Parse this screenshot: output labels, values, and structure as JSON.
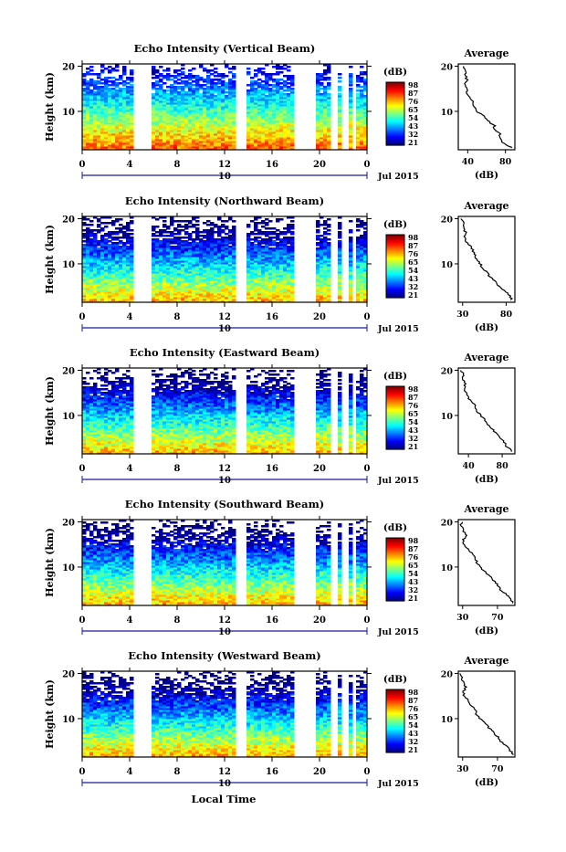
{
  "colorbar_unit": "(dB)",
  "common": {
    "x_ticks": [
      "0",
      "4",
      "8",
      "12",
      "16",
      "20",
      "0"
    ],
    "date_tick": "10",
    "date_label": "Jul 2015",
    "ylabel": "Height (km)",
    "y_ticks": [
      "20",
      "10"
    ],
    "xlabel": "Local Time"
  },
  "chart_data": [
    {
      "type": "heatmap",
      "title": "Echo Intensity (Vertical Beam)",
      "ylabel": "Height (km)",
      "x": {
        "unit": "local time (h)",
        "range": [
          0,
          24
        ],
        "ticks": [
          0,
          4,
          8,
          12,
          16,
          20,
          24
        ]
      },
      "y": {
        "unit": "km",
        "range": [
          1.5,
          20.5
        ],
        "ticks": [
          10,
          20
        ]
      },
      "gaps_hours": [
        [
          4.3,
          5.9
        ],
        [
          12.9,
          14.0
        ],
        [
          17.8,
          19.7
        ],
        [
          21.0,
          21.4
        ],
        [
          22.0,
          22.5
        ],
        [
          22.8,
          23.2
        ]
      ],
      "colorbar_ticks": [
        "98",
        "87",
        "76",
        "65",
        "54",
        "43",
        "32",
        "21"
      ],
      "colorbar_range": [
        21,
        98
      ],
      "profile": {
        "title": "Average",
        "xlabel": "(dB)",
        "xlim": [
          30,
          90
        ],
        "xticks": [
          "40",
          "80"
        ],
        "xtick_values": [
          40,
          80
        ],
        "heights": [
          2,
          3,
          4,
          5,
          6,
          7,
          8,
          9,
          10,
          11,
          12,
          13,
          14,
          15,
          16,
          17,
          18,
          19,
          20
        ],
        "values": [
          86,
          78,
          73,
          74,
          69,
          68,
          60,
          56,
          50,
          46,
          45,
          43,
          40,
          39,
          38,
          39,
          37,
          38,
          36
        ]
      }
    },
    {
      "type": "heatmap",
      "title": "Echo Intensity (Northward Beam)",
      "ylabel": "Height (km)",
      "x": {
        "unit": "local time (h)",
        "range": [
          0,
          24
        ],
        "ticks": [
          0,
          4,
          8,
          12,
          16,
          20,
          24
        ]
      },
      "y": {
        "unit": "km",
        "range": [
          1.5,
          20.5
        ],
        "ticks": [
          10,
          20
        ]
      },
      "gaps_hours": [
        [
          4.3,
          5.9
        ],
        [
          12.9,
          14.0
        ],
        [
          17.8,
          19.7
        ],
        [
          21.0,
          21.4
        ],
        [
          22.0,
          22.5
        ],
        [
          22.8,
          23.2
        ]
      ],
      "colorbar_ticks": [
        "98",
        "87",
        "76",
        "65",
        "54",
        "43",
        "32",
        "21"
      ],
      "colorbar_range": [
        21,
        98
      ],
      "profile": {
        "title": "Average",
        "xlabel": "(dB)",
        "xlim": [
          25,
          90
        ],
        "xticks": [
          "30",
          "80"
        ],
        "xtick_values": [
          30,
          80
        ],
        "heights": [
          2,
          3,
          4,
          5,
          6,
          7,
          8,
          9,
          10,
          11,
          12,
          13,
          14,
          15,
          16,
          17,
          18,
          19,
          20
        ],
        "values": [
          86,
          84,
          78,
          72,
          68,
          62,
          58,
          54,
          50,
          46,
          44,
          42,
          38,
          34,
          31,
          34,
          30,
          31,
          29
        ]
      }
    },
    {
      "type": "heatmap",
      "title": "Echo Intensity (Eastward Beam)",
      "ylabel": "Height (km)",
      "x": {
        "unit": "local time (h)",
        "range": [
          0,
          24
        ],
        "ticks": [
          0,
          4,
          8,
          12,
          16,
          20,
          24
        ]
      },
      "y": {
        "unit": "km",
        "range": [
          1.5,
          20.5
        ],
        "ticks": [
          10,
          20
        ]
      },
      "gaps_hours": [
        [
          4.3,
          5.9
        ],
        [
          12.9,
          14.0
        ],
        [
          17.8,
          19.7
        ],
        [
          21.0,
          21.4
        ],
        [
          22.0,
          22.5
        ],
        [
          22.8,
          23.2
        ]
      ],
      "colorbar_ticks": [
        "98",
        "87",
        "76",
        "65",
        "54",
        "43",
        "32",
        "21"
      ],
      "colorbar_range": [
        21,
        98
      ],
      "profile": {
        "title": "Average",
        "xlabel": "(dB)",
        "xlim": [
          28,
          95
        ],
        "xticks": [
          "40",
          "80"
        ],
        "xtick_values": [
          40,
          80
        ],
        "heights": [
          2,
          3,
          4,
          5,
          6,
          7,
          8,
          9,
          10,
          11,
          12,
          13,
          14,
          15,
          16,
          17,
          18,
          19,
          20
        ],
        "values": [
          92,
          86,
          82,
          78,
          72,
          68,
          63,
          60,
          54,
          50,
          48,
          44,
          40,
          37,
          35,
          37,
          33,
          34,
          32
        ]
      }
    },
    {
      "type": "heatmap",
      "title": "Echo Intensity (Southward Beam)",
      "ylabel": "Height (km)",
      "x": {
        "unit": "local time (h)",
        "range": [
          0,
          24
        ],
        "ticks": [
          0,
          4,
          8,
          12,
          16,
          20,
          24
        ]
      },
      "y": {
        "unit": "km",
        "range": [
          1.5,
          20.5
        ],
        "ticks": [
          10,
          20
        ]
      },
      "gaps_hours": [
        [
          4.3,
          5.9
        ],
        [
          12.9,
          14.0
        ],
        [
          17.8,
          19.7
        ],
        [
          21.0,
          21.4
        ],
        [
          22.0,
          22.5
        ],
        [
          22.8,
          23.2
        ]
      ],
      "colorbar_ticks": [
        "98",
        "87",
        "76",
        "65",
        "54",
        "43",
        "32",
        "21"
      ],
      "colorbar_range": [
        21,
        98
      ],
      "profile": {
        "title": "Average",
        "xlabel": "(dB)",
        "xlim": [
          25,
          90
        ],
        "xticks": [
          "30",
          "70"
        ],
        "xtick_values": [
          30,
          70
        ],
        "heights": [
          2,
          3,
          4,
          5,
          6,
          7,
          8,
          9,
          10,
          11,
          12,
          13,
          14,
          15,
          16,
          17,
          18,
          19,
          20
        ],
        "values": [
          88,
          84,
          80,
          74,
          70,
          66,
          60,
          56,
          50,
          46,
          44,
          40,
          36,
          32,
          31,
          34,
          30,
          29,
          28
        ]
      }
    },
    {
      "type": "heatmap",
      "title": "Echo Intensity (Westward Beam)",
      "ylabel": "Height (km)",
      "x": {
        "unit": "local time (h)",
        "range": [
          0,
          24
        ],
        "ticks": [
          0,
          4,
          8,
          12,
          16,
          20,
          24
        ]
      },
      "y": {
        "unit": "km",
        "range": [
          1.5,
          20.5
        ],
        "ticks": [
          10,
          20
        ]
      },
      "gaps_hours": [
        [
          4.3,
          5.9
        ],
        [
          12.9,
          14.0
        ],
        [
          17.8,
          19.7
        ],
        [
          21.0,
          21.4
        ],
        [
          22.0,
          22.5
        ],
        [
          22.8,
          23.2
        ]
      ],
      "colorbar_ticks": [
        "98",
        "87",
        "76",
        "65",
        "54",
        "43",
        "32",
        "21"
      ],
      "colorbar_range": [
        21,
        98
      ],
      "profile": {
        "title": "Average",
        "xlabel": "(dB)",
        "xlim": [
          25,
          90
        ],
        "xticks": [
          "30",
          "70"
        ],
        "xtick_values": [
          30,
          70
        ],
        "heights": [
          2,
          3,
          4,
          5,
          6,
          7,
          8,
          9,
          10,
          11,
          12,
          13,
          14,
          15,
          16,
          17,
          18,
          19,
          20
        ],
        "values": [
          88,
          84,
          80,
          74,
          70,
          66,
          60,
          56,
          50,
          46,
          44,
          40,
          36,
          32,
          31,
          34,
          30,
          29,
          28
        ]
      }
    }
  ]
}
